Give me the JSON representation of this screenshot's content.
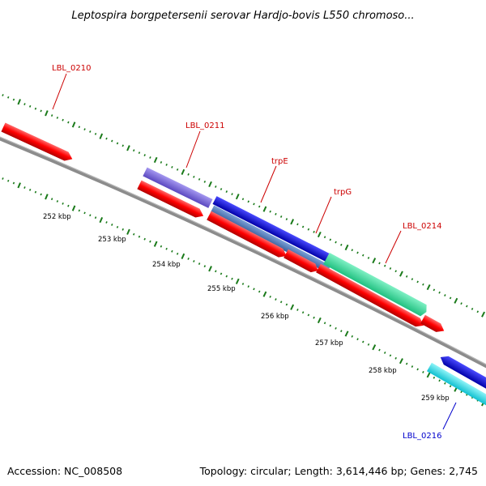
{
  "title": "Leptospira borgpetersenii serovar Hardjo-bovis L550 chromoso...",
  "footer": {
    "accession": "Accession: NC_008508",
    "summary": "Topology: circular; Length: 3,614,446 bp; Genes: 2,745"
  },
  "colors": {
    "background": "#ffffff",
    "backbone": "#8c8c8c",
    "tick": "#1a7a1a",
    "label_red": "#cc0000",
    "label_blue": "#0000cc"
  },
  "tick_labels": [
    {
      "id": "252",
      "text": "252 kbp"
    },
    {
      "id": "253",
      "text": "253 kbp"
    },
    {
      "id": "254",
      "text": "254 kbp"
    },
    {
      "id": "255",
      "text": "255 kbp"
    },
    {
      "id": "256",
      "text": "256 kbp"
    },
    {
      "id": "257",
      "text": "257 kbp"
    },
    {
      "id": "258",
      "text": "258 kbp"
    },
    {
      "id": "259",
      "text": "259 kbp"
    }
  ],
  "gene_labels": [
    {
      "id": "lbl0210",
      "text": "LBL_0210",
      "color": "#cc0000"
    },
    {
      "id": "lbl0211",
      "text": "LBL_0211",
      "color": "#cc0000"
    },
    {
      "id": "trpE",
      "text": "trpE",
      "color": "#cc0000"
    },
    {
      "id": "trpG",
      "text": "trpG",
      "color": "#cc0000"
    },
    {
      "id": "lbl0214",
      "text": "LBL_0214",
      "color": "#cc0000"
    },
    {
      "id": "lbl0216",
      "text": "LBL_0216",
      "color": "#0000cc"
    }
  ],
  "feature_colors": {
    "cds": "#ff0000",
    "purple": "#7b68d8",
    "blue": "#1414d8",
    "steel": "#4a78b8",
    "green": "#33e0a0",
    "cyan": "#22e0e8"
  }
}
